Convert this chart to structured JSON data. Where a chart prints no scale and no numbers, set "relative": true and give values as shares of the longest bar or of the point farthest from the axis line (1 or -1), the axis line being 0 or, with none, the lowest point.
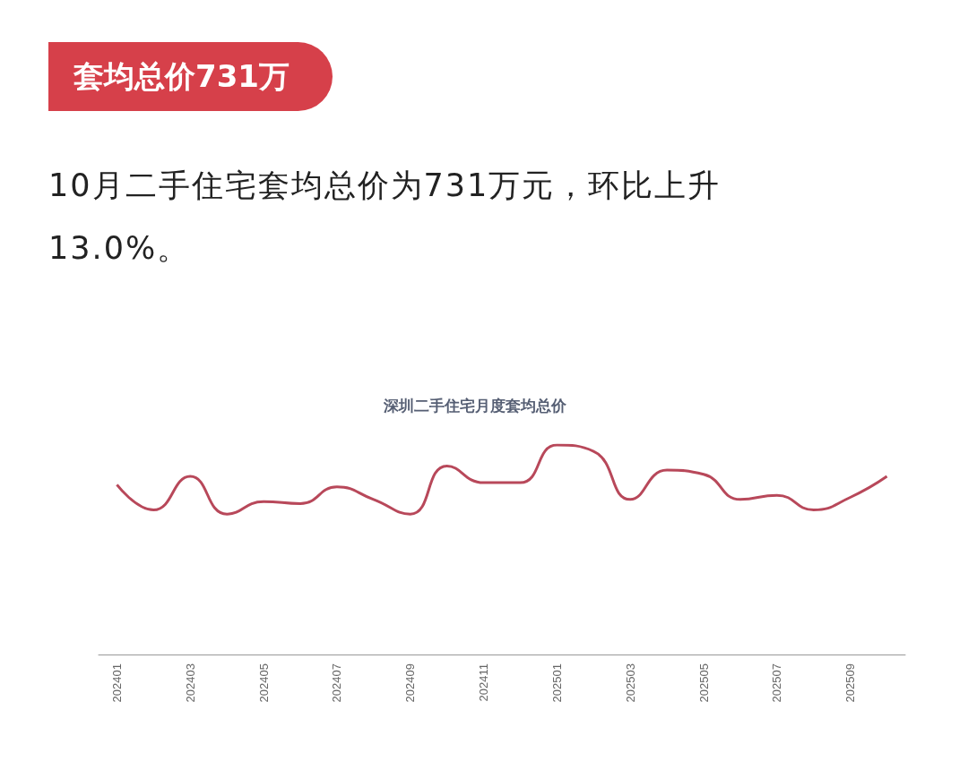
{
  "chart_data": {
    "type": "line",
    "title": "套均总价731万",
    "subtitle": "10月二手住宅套均总价为731万元，环比上升13.0%。",
    "annotations": [
      "深圳二手住宅月度套均总价"
    ],
    "relative": true,
    "marker": "none",
    "color": "#b8485a",
    "categories": [
      "202401",
      null,
      "202403",
      null,
      "202405",
      null,
      "202407",
      null,
      "202409",
      null,
      "202411",
      null,
      "202501",
      null,
      "202503",
      null,
      "202505",
      null,
      "202507",
      null,
      "202509",
      null
    ],
    "values": [
      0.81,
      0.69,
      0.85,
      0.67,
      0.73,
      0.72,
      0.8,
      0.74,
      0.67,
      0.9,
      0.82,
      0.82,
      1,
      0.97,
      0.74,
      0.88,
      0.86,
      0.74,
      0.76,
      0.69,
      0.75,
      0.85
    ]
  }
}
